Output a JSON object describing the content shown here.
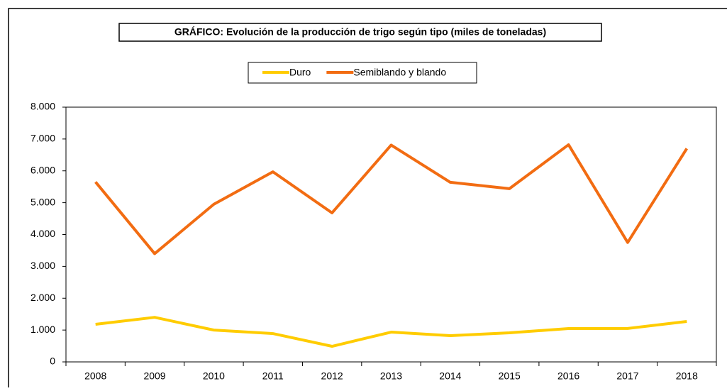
{
  "chart_data": {
    "type": "line",
    "title": "GRÁFICO: Evolución de la producción de trigo según tipo (miles de toneladas)",
    "categories": [
      "2008",
      "2009",
      "2010",
      "2011",
      "2012",
      "2013",
      "2014",
      "2015",
      "2016",
      "2017",
      "2018"
    ],
    "series": [
      {
        "name": "Duro",
        "color": "#ffcc00",
        "values": [
          1180,
          1400,
          1000,
          890,
          490,
          935,
          824,
          913,
          1047,
          1050,
          1270
        ]
      },
      {
        "name": "Semiblando y blando",
        "color": "#f26c12",
        "values": [
          5650,
          3400,
          4950,
          5970,
          4680,
          6810,
          5640,
          5440,
          6820,
          3750,
          6700
        ]
      }
    ],
    "ylim": [
      0,
      8000
    ],
    "yticks": [
      0,
      {
        "value": 1000,
        "label": "1.000"
      },
      {
        "value": 2000,
        "label": "2.000"
      },
      {
        "value": 3000,
        "label": "3.000"
      },
      {
        "value": 4000,
        "label": "4.000"
      },
      {
        "value": 5000,
        "label": "5.000"
      },
      {
        "value": 6000,
        "label": "6.000"
      },
      {
        "value": 7000,
        "label": "7.000"
      },
      {
        "value": 8000,
        "label": "8.000"
      }
    ],
    "grid": false,
    "legend": "top"
  }
}
